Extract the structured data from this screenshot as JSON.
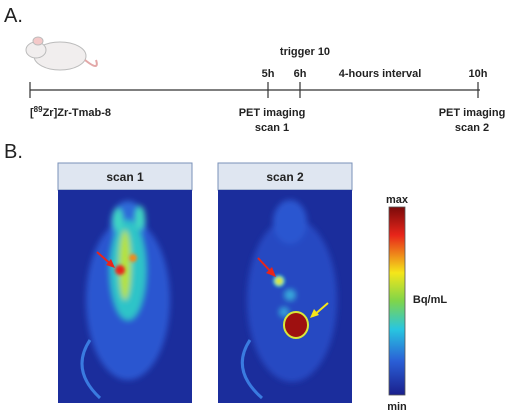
{
  "panel_a": {
    "label": "A.",
    "trigger": "trigger 10",
    "times": [
      "5h",
      "6h",
      "10h"
    ],
    "interval": "4-hours interval",
    "compound": {
      "prefix": "[",
      "superscript": "89",
      "rest": "Zr]Zr-Tmab-8"
    },
    "scan1": {
      "line1": "PET imaging",
      "line2": "scan 1"
    },
    "scan2": {
      "line1": "PET imaging",
      "line2": "scan 2"
    }
  },
  "panel_b": {
    "label": "B.",
    "images": [
      "scan 1",
      "scan 2"
    ],
    "colorbar": {
      "max": "max",
      "unit": "Bq/mL",
      "min": "min"
    }
  }
}
